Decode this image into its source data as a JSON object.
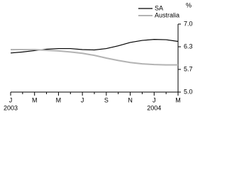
{
  "chart_data": {
    "type": "line",
    "categories": [
      "J",
      null,
      "M",
      null,
      "M",
      null,
      "J",
      null,
      "S",
      null,
      "N",
      null,
      "J",
      null,
      "M"
    ],
    "category_years": [
      "2003",
      null,
      null,
      null,
      null,
      null,
      null,
      null,
      null,
      null,
      null,
      null,
      "2004",
      null,
      null
    ],
    "y_label": "%",
    "series": [
      {
        "name": "SA",
        "color": "#000000",
        "values": [
          6.15,
          6.18,
          6.22,
          6.26,
          6.28,
          6.28,
          6.25,
          6.24,
          6.28,
          6.36,
          6.46,
          6.52,
          6.55,
          6.54,
          6.49
        ]
      },
      {
        "name": "Australia",
        "color": "#b3b3b3",
        "values": [
          6.25,
          6.25,
          6.25,
          6.23,
          6.21,
          6.18,
          6.14,
          6.08,
          6.0,
          5.93,
          5.87,
          5.83,
          5.81,
          5.8,
          5.8
        ]
      }
    ],
    "ylim": [
      5.0,
      7.0
    ],
    "yticks": [
      {
        "value": 5.0,
        "label": "5.0"
      },
      {
        "value": 5.667,
        "label": "5.7"
      },
      {
        "value": 6.333,
        "label": "6.3"
      },
      {
        "value": 7.0,
        "label": "7.0"
      }
    ],
    "legend": "top-right"
  }
}
